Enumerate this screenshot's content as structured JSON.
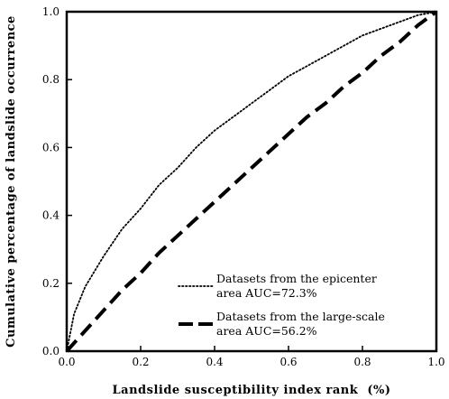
{
  "chart_data": {
    "type": "line",
    "title": "",
    "xlabel": "Landslide susceptibility index rank  (%)",
    "ylabel": "Cumulative percentage of landslide occurrence",
    "xlim": [
      0,
      1
    ],
    "ylim": [
      0,
      1
    ],
    "x_ticks": [
      "0.0",
      "0.2",
      "0.4",
      "0.6",
      "0.8",
      "1.0"
    ],
    "y_ticks": [
      "0.0",
      "0.2",
      "0.4",
      "0.6",
      "0.8",
      "1.0"
    ],
    "grid": false,
    "legend_position": "bottom-right",
    "series": [
      {
        "name_lines": [
          "Datasets from the epicenter",
          "area AUC=72.3%"
        ],
        "style": "dotted",
        "color": "#000000",
        "x": [
          0,
          0.02,
          0.05,
          0.1,
          0.15,
          0.2,
          0.25,
          0.3,
          0.35,
          0.4,
          0.45,
          0.5,
          0.55,
          0.6,
          0.65,
          0.7,
          0.75,
          0.8,
          0.85,
          0.9,
          0.95,
          1.0
        ],
        "y": [
          0,
          0.11,
          0.19,
          0.28,
          0.36,
          0.42,
          0.49,
          0.54,
          0.6,
          0.65,
          0.69,
          0.73,
          0.77,
          0.81,
          0.84,
          0.87,
          0.9,
          0.93,
          0.95,
          0.97,
          0.99,
          1.0
        ]
      },
      {
        "name_lines": [
          "Datasets from the large-scale",
          "area AUC=56.2%"
        ],
        "style": "dashed",
        "color": "#000000",
        "x": [
          0,
          0.05,
          0.1,
          0.15,
          0.2,
          0.25,
          0.3,
          0.35,
          0.4,
          0.45,
          0.5,
          0.55,
          0.6,
          0.65,
          0.7,
          0.75,
          0.8,
          0.85,
          0.9,
          0.95,
          1.0
        ],
        "y": [
          0,
          0.06,
          0.12,
          0.18,
          0.23,
          0.29,
          0.34,
          0.39,
          0.44,
          0.49,
          0.54,
          0.59,
          0.64,
          0.69,
          0.73,
          0.78,
          0.82,
          0.87,
          0.91,
          0.96,
          1.0
        ]
      }
    ]
  }
}
